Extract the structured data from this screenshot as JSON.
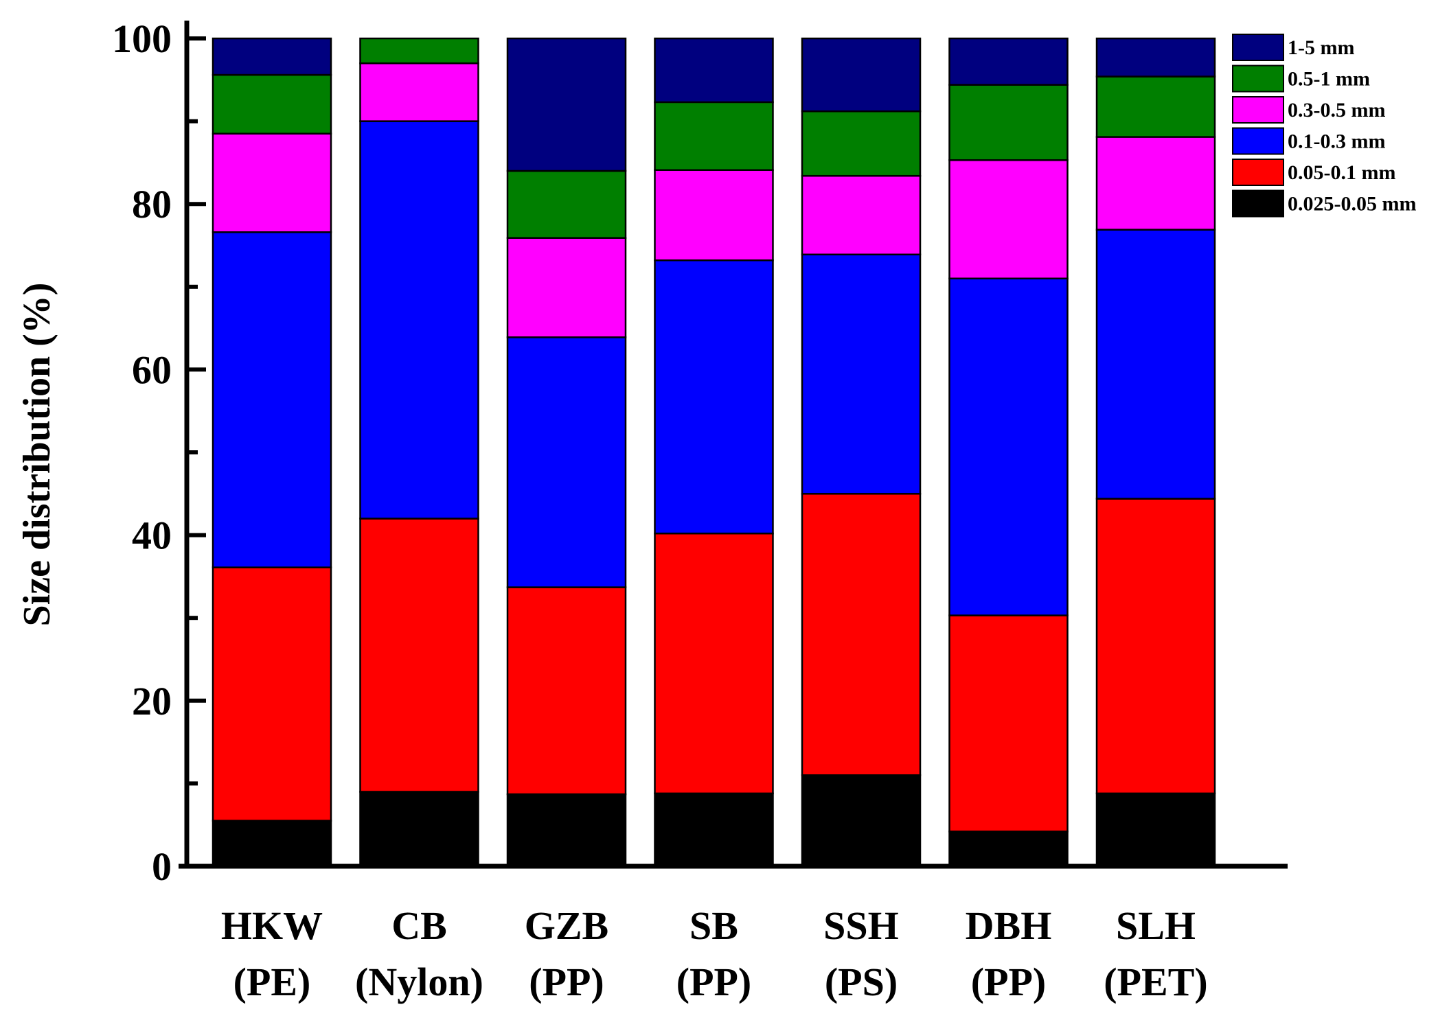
{
  "chart_data": {
    "type": "bar",
    "stacked": true,
    "title": "",
    "xlabel": "",
    "ylabel": "Size distribution (%)",
    "ylim": [
      0,
      100
    ],
    "yticks": [
      "0",
      "20",
      "40",
      "60",
      "80",
      "100"
    ],
    "categories": [
      {
        "line1": "HKW",
        "line2": "(PE)"
      },
      {
        "line1": "CB",
        "line2": "(Nylon)"
      },
      {
        "line1": "GZB",
        "line2": "(PP)"
      },
      {
        "line1": "SB",
        "line2": "(PP)"
      },
      {
        "line1": "SSH",
        "line2": "(PS)"
      },
      {
        "line1": "DBH",
        "line2": "(PP)"
      },
      {
        "line1": "SLH",
        "line2": "(PET)"
      }
    ],
    "series": [
      {
        "name": "0.025-0.05 mm",
        "color": "#000000",
        "values": [
          5.5,
          9.0,
          8.7,
          8.8,
          11.0,
          4.2,
          8.8
        ]
      },
      {
        "name": "0.05-0.1 mm",
        "color": "#ff0000",
        "values": [
          30.6,
          33.0,
          25.0,
          31.4,
          34.0,
          26.1,
          35.6
        ]
      },
      {
        "name": "0.1-0.3 mm",
        "color": "#0000ff",
        "values": [
          40.5,
          48.0,
          30.2,
          33.0,
          28.9,
          40.7,
          32.5
        ]
      },
      {
        "name": "0.3-0.5 mm",
        "color": "#ff00ff",
        "values": [
          11.9,
          7.0,
          12.0,
          10.9,
          9.5,
          14.3,
          11.2
        ]
      },
      {
        "name": "0.5-1 mm",
        "color": "#007f00",
        "values": [
          7.1,
          3.0,
          8.1,
          8.2,
          7.8,
          9.1,
          7.3
        ]
      },
      {
        "name": "1-5 mm",
        "color": "#00007f",
        "values": [
          4.4,
          0.0,
          16.0,
          7.7,
          8.8,
          5.6,
          4.6
        ]
      }
    ],
    "legend_position": "top-right",
    "legend_order": [
      "1-5 mm",
      "0.5-1 mm",
      "0.3-0.5 mm",
      "0.1-0.3 mm",
      "0.05-0.1 mm",
      "0.025-0.05 mm"
    ]
  }
}
